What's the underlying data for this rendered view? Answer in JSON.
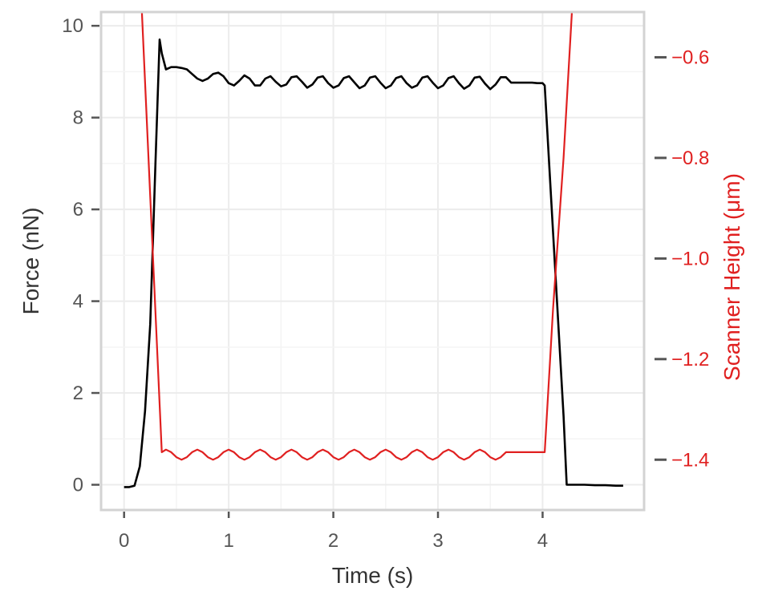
{
  "chart_data": {
    "type": "line",
    "xlabel": "Time (s)",
    "ylabel_left": "Force (nN)",
    "ylabel_right": "Scanner Height (μm)",
    "xlim": [
      -0.22,
      4.97
    ],
    "xticks": [
      0,
      1,
      2,
      3,
      4
    ],
    "ylim_left": [
      -0.55,
      10.3
    ],
    "yticks_left": [
      0,
      2,
      4,
      6,
      8,
      10
    ],
    "ylim_right": [
      -1.5,
      -0.51
    ],
    "yticks_right": [
      -0.6,
      -0.8,
      -1.0,
      -1.2,
      -1.4
    ],
    "yticks_right_labels": [
      "−0.6",
      "−0.8",
      "−1.0",
      "−1.2",
      "−1.4"
    ],
    "grid": true,
    "colors": {
      "force": "#000000",
      "height": "#e02020",
      "grid": "#ececec",
      "frame": "#d3d3d3",
      "ticks": "#555555"
    },
    "series": [
      {
        "axis": "left",
        "x": [
          0.0,
          0.05,
          0.1,
          0.15,
          0.2,
          0.25,
          0.3,
          0.34,
          0.36,
          0.4,
          0.45,
          0.5,
          0.55,
          0.6,
          0.65,
          0.7,
          0.75,
          0.8,
          0.85,
          0.9,
          0.95,
          1.0,
          1.05,
          1.1,
          1.15,
          1.2,
          1.25,
          1.3,
          1.35,
          1.4,
          1.45,
          1.5,
          1.55,
          1.6,
          1.65,
          1.7,
          1.75,
          1.8,
          1.85,
          1.9,
          1.95,
          2.0,
          2.05,
          2.1,
          2.15,
          2.2,
          2.25,
          2.3,
          2.35,
          2.4,
          2.45,
          2.5,
          2.55,
          2.6,
          2.65,
          2.7,
          2.75,
          2.8,
          2.85,
          2.9,
          2.95,
          3.0,
          3.05,
          3.1,
          3.15,
          3.2,
          3.25,
          3.3,
          3.35,
          3.4,
          3.45,
          3.5,
          3.55,
          3.6,
          3.65,
          3.7,
          3.8,
          3.9,
          3.95,
          4.0,
          4.02,
          4.1,
          4.2,
          4.23,
          4.3,
          4.4,
          4.5,
          4.6,
          4.7,
          4.77
        ],
        "y": [
          -0.05,
          -0.05,
          -0.02,
          0.4,
          1.6,
          3.5,
          7.0,
          9.7,
          9.4,
          9.05,
          9.1,
          9.1,
          9.08,
          9.05,
          8.95,
          8.85,
          8.8,
          8.85,
          8.95,
          8.98,
          8.9,
          8.75,
          8.7,
          8.8,
          8.92,
          8.85,
          8.7,
          8.7,
          8.85,
          8.9,
          8.78,
          8.68,
          8.72,
          8.88,
          8.9,
          8.78,
          8.65,
          8.72,
          8.87,
          8.9,
          8.75,
          8.65,
          8.7,
          8.86,
          8.9,
          8.77,
          8.64,
          8.7,
          8.87,
          8.9,
          8.76,
          8.64,
          8.7,
          8.86,
          8.9,
          8.75,
          8.65,
          8.7,
          8.87,
          8.9,
          8.76,
          8.64,
          8.7,
          8.86,
          8.9,
          8.75,
          8.63,
          8.7,
          8.87,
          8.89,
          8.74,
          8.62,
          8.72,
          8.88,
          8.88,
          8.76,
          8.76,
          8.76,
          8.75,
          8.75,
          8.7,
          5.5,
          1.5,
          0.0,
          0.0,
          0.0,
          -0.01,
          -0.01,
          -0.02,
          -0.02
        ]
      },
      {
        "axis": "right",
        "x": [
          0.17,
          0.36,
          0.4,
          0.45,
          0.5,
          0.55,
          0.6,
          0.65,
          0.7,
          0.75,
          0.8,
          0.85,
          0.9,
          0.95,
          1.0,
          1.05,
          1.1,
          1.15,
          1.2,
          1.25,
          1.3,
          1.35,
          1.4,
          1.45,
          1.5,
          1.55,
          1.6,
          1.65,
          1.7,
          1.75,
          1.8,
          1.85,
          1.9,
          1.95,
          2.0,
          2.05,
          2.1,
          2.15,
          2.2,
          2.25,
          2.3,
          2.35,
          2.4,
          2.45,
          2.5,
          2.55,
          2.6,
          2.65,
          2.7,
          2.75,
          2.8,
          2.85,
          2.9,
          2.95,
          3.0,
          3.05,
          3.1,
          3.15,
          3.2,
          3.25,
          3.3,
          3.35,
          3.4,
          3.45,
          3.5,
          3.55,
          3.6,
          3.65,
          3.7,
          3.8,
          3.9,
          4.0,
          4.02,
          4.1,
          4.2,
          4.28
        ],
        "y": [
          -0.51,
          -1.385,
          -1.38,
          -1.385,
          -1.395,
          -1.4,
          -1.395,
          -1.385,
          -1.38,
          -1.385,
          -1.395,
          -1.4,
          -1.395,
          -1.385,
          -1.38,
          -1.385,
          -1.395,
          -1.4,
          -1.395,
          -1.385,
          -1.38,
          -1.385,
          -1.395,
          -1.4,
          -1.395,
          -1.385,
          -1.38,
          -1.385,
          -1.395,
          -1.4,
          -1.395,
          -1.385,
          -1.38,
          -1.385,
          -1.395,
          -1.4,
          -1.395,
          -1.385,
          -1.38,
          -1.385,
          -1.395,
          -1.4,
          -1.395,
          -1.385,
          -1.38,
          -1.385,
          -1.395,
          -1.4,
          -1.395,
          -1.385,
          -1.38,
          -1.385,
          -1.395,
          -1.4,
          -1.395,
          -1.385,
          -1.38,
          -1.385,
          -1.395,
          -1.4,
          -1.395,
          -1.385,
          -1.38,
          -1.385,
          -1.395,
          -1.4,
          -1.395,
          -1.385,
          -1.385,
          -1.385,
          -1.385,
          -1.385,
          -1.385,
          -1.1,
          -0.8,
          -0.51
        ]
      }
    ]
  }
}
